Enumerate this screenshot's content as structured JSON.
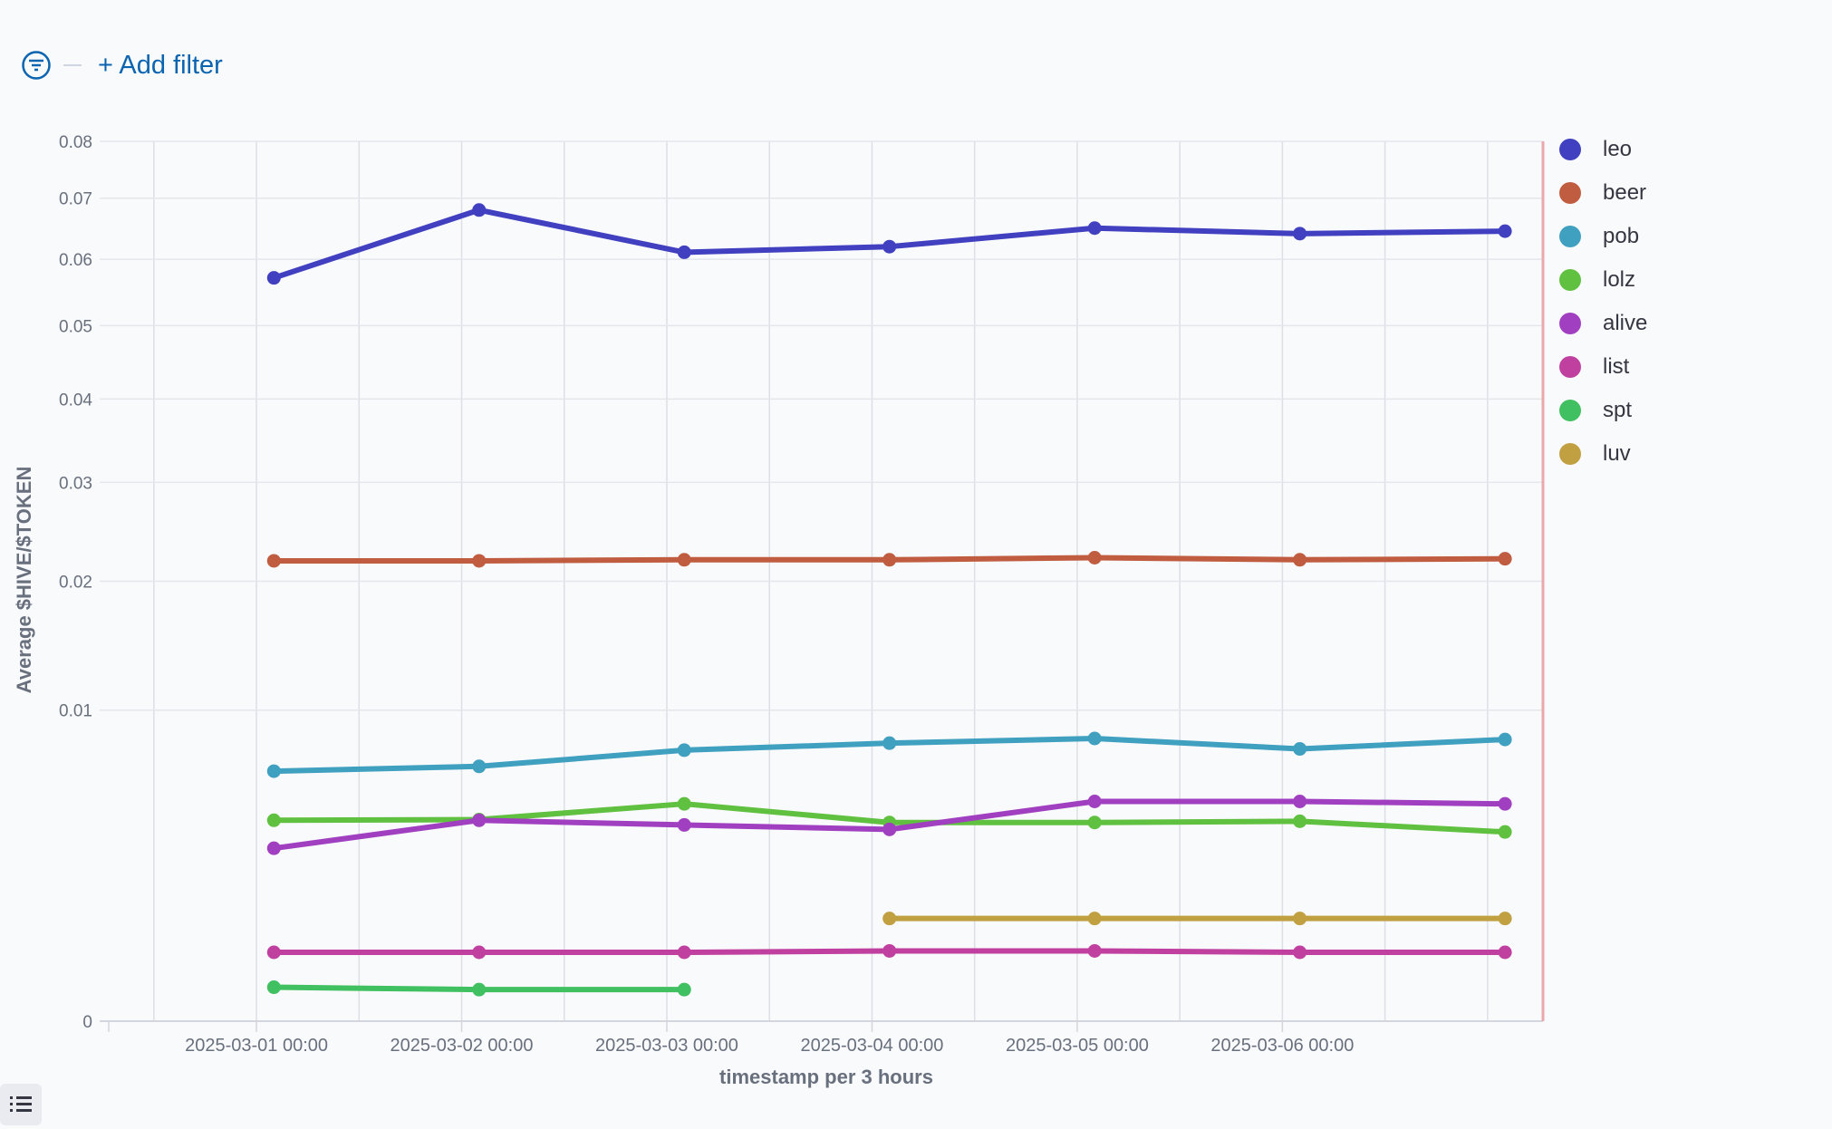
{
  "filter_bar": {
    "add_filter_label": "+ Add filter"
  },
  "chart_data": {
    "type": "line",
    "title": "",
    "xlabel": "timestamp per 3 hours",
    "ylabel": "Average $HIVE/$TOKEN",
    "y_scale": "sqrt",
    "ylim": [
      0,
      0.08
    ],
    "y_ticks": [
      0,
      0.01,
      0.02,
      0.03,
      0.04,
      0.05,
      0.06,
      0.07,
      0.08
    ],
    "y_tick_labels": [
      "0",
      "0.01",
      "0.02",
      "0.03",
      "0.04",
      "0.05",
      "0.06",
      "0.07",
      "0.08"
    ],
    "x_units": "days since 2025-03-01 00:00",
    "xlim": [
      -0.72,
      6.27
    ],
    "x_ticks": [
      0,
      1,
      2,
      3,
      4,
      5
    ],
    "x_tick_labels": [
      "2025-03-01 00:00",
      "2025-03-02 00:00",
      "2025-03-03 00:00",
      "2025-03-04 00:00",
      "2025-03-05 00:00",
      "2025-03-06 00:00"
    ],
    "x": [
      0.085,
      1.085,
      2.085,
      3.085,
      4.085,
      5.085,
      6.085
    ],
    "grid": true,
    "legend_position": "right",
    "series": [
      {
        "name": "leo",
        "color": "#4040c0",
        "values": [
          0.0571,
          0.068,
          0.0611,
          0.062,
          0.065,
          0.0641,
          0.0645
        ]
      },
      {
        "name": "beer",
        "color": "#c05c40",
        "values": [
          0.0219,
          0.0219,
          0.022,
          0.022,
          0.0222,
          0.022,
          0.0221
        ]
      },
      {
        "name": "pob",
        "color": "#40a0c0",
        "values": [
          0.00646,
          0.00671,
          0.00759,
          0.00799,
          0.00826,
          0.00766,
          0.0082
        ]
      },
      {
        "name": "lolz",
        "color": "#60c040",
        "values": [
          0.00417,
          0.0042,
          0.00488,
          0.00408,
          0.00408,
          0.00413,
          0.0037
        ]
      },
      {
        "name": "alive",
        "color": "#a040c0",
        "values": [
          0.00309,
          0.00417,
          0.00398,
          0.0038,
          0.00499,
          0.00499,
          0.00488
        ]
      },
      {
        "name": "list",
        "color": "#c040a0",
        "values": [
          0.00049,
          0.00049,
          0.00049,
          0.00051,
          0.00051,
          0.00049,
          0.00049
        ]
      },
      {
        "name": "spt",
        "color": "#40c060",
        "values": [
          0.000119,
          0.000103,
          0.000103,
          null,
          null,
          null,
          null
        ]
      },
      {
        "name": "luv",
        "color": "#c0a040",
        "values": [
          null,
          null,
          null,
          0.00109,
          0.00109,
          0.00109,
          0.00109
        ]
      }
    ]
  }
}
